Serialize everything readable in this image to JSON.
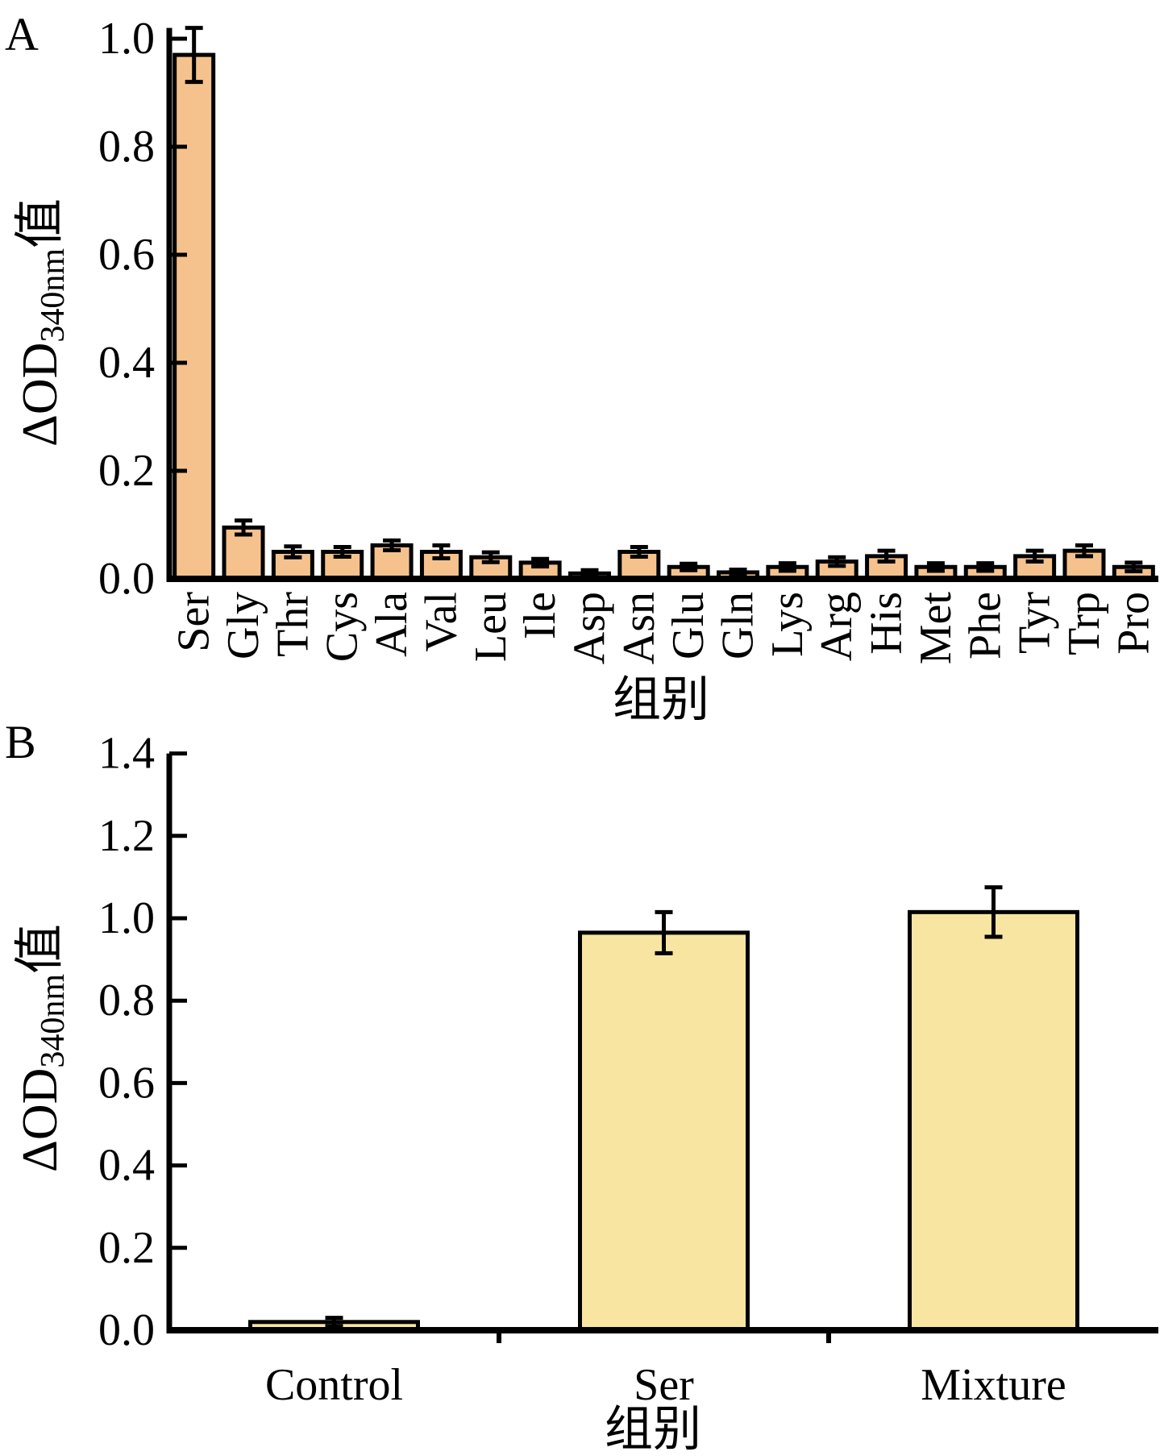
{
  "figure": {
    "background": "#ffffff",
    "panels": [
      {
        "label": "A"
      },
      {
        "label": "B"
      }
    ]
  },
  "chart_data": [
    {
      "panel": "A",
      "type": "bar",
      "title": "",
      "categories": [
        "Ser",
        "Gly",
        "Thr",
        "Cys",
        "Ala",
        "Val",
        "Leu",
        "Ile",
        "Asp",
        "Asn",
        "Glu",
        "Gln",
        "Lys",
        "Arg",
        "His",
        "Met",
        "Phe",
        "Tyr",
        "Trp",
        "Pro"
      ],
      "values": [
        0.97,
        0.095,
        0.05,
        0.05,
        0.062,
        0.05,
        0.04,
        0.03,
        0.01,
        0.05,
        0.022,
        0.012,
        0.022,
        0.032,
        0.042,
        0.022,
        0.022,
        0.042,
        0.052,
        0.022
      ],
      "errors": [
        0.05,
        0.013,
        0.01,
        0.009,
        0.009,
        0.012,
        0.009,
        0.007,
        0.006,
        0.009,
        0.006,
        0.005,
        0.007,
        0.008,
        0.01,
        0.007,
        0.007,
        0.01,
        0.01,
        0.008
      ],
      "ylabel_parts": {
        "main": "ΔOD",
        "sub": "340nm",
        "suffix": "值"
      },
      "xlabel": "组别",
      "yticks": [
        0.0,
        0.2,
        0.4,
        0.6,
        0.8,
        1.0
      ],
      "ylim": [
        0,
        1.02
      ],
      "x_tick_label_rotation": 90,
      "bar_color": "#F5C28E",
      "bar_edge_color": "#000000",
      "error_color": "#000000",
      "grid": false,
      "legend": null
    },
    {
      "panel": "B",
      "type": "bar",
      "title": "",
      "categories": [
        "Control",
        "Ser",
        "Mixture"
      ],
      "values": [
        0.02,
        0.965,
        1.015
      ],
      "errors": [
        0.01,
        0.05,
        0.06
      ],
      "ylabel_parts": {
        "main": "ΔOD",
        "sub": "340nm",
        "suffix": "值"
      },
      "xlabel": "组别",
      "yticks": [
        0.0,
        0.2,
        0.4,
        0.6,
        0.8,
        1.0,
        1.2,
        1.4
      ],
      "ylim": [
        0,
        1.4
      ],
      "x_tick_label_rotation": 0,
      "bar_color": "#F8E5A2",
      "bar_edge_color": "#000000",
      "error_color": "#000000",
      "grid": false,
      "legend": null
    }
  ]
}
